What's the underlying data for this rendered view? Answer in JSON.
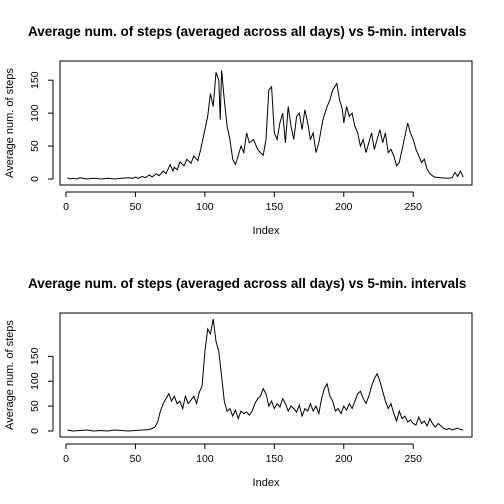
{
  "chart_data": [
    {
      "type": "line",
      "title": "Average num. of steps (averaged across all days) vs 5-min. intervals",
      "xlabel": "Index",
      "ylabel": "Average num. of steps",
      "xlim": [
        0,
        288
      ],
      "ylim": [
        0,
        170
      ],
      "xticks": [
        0,
        50,
        100,
        150,
        200,
        250
      ],
      "yticks": [
        0,
        50,
        100,
        150
      ],
      "grid": false,
      "series": [
        {
          "x": [
            1,
            3,
            5,
            8,
            10,
            12,
            15,
            20,
            25,
            30,
            35,
            40,
            45,
            48,
            50,
            52,
            55,
            57,
            60,
            62,
            65,
            67,
            70,
            72,
            75,
            77,
            78,
            80,
            82,
            85,
            87,
            90,
            92,
            95,
            97,
            100,
            102,
            104,
            106,
            108,
            110,
            111,
            112,
            114,
            116,
            118,
            120,
            122,
            124,
            126,
            128,
            130,
            132,
            135,
            138,
            140,
            142,
            144,
            146,
            148,
            150,
            152,
            154,
            156,
            158,
            160,
            162,
            164,
            166,
            168,
            170,
            172,
            174,
            176,
            178,
            180,
            182,
            185,
            188,
            190,
            192,
            195,
            197,
            199,
            200,
            202,
            204,
            206,
            208,
            210,
            212,
            214,
            216,
            218,
            220,
            222,
            224,
            226,
            228,
            230,
            232,
            234,
            236,
            238,
            240,
            242,
            244,
            246,
            248,
            250,
            252,
            254,
            256,
            258,
            260,
            262,
            265,
            270,
            275,
            278,
            280,
            282,
            284,
            286
          ],
          "y": [
            2,
            0,
            1,
            0,
            2,
            1,
            0,
            1,
            0,
            1,
            0,
            1,
            2,
            1,
            3,
            1,
            4,
            2,
            6,
            3,
            8,
            5,
            12,
            8,
            22,
            12,
            18,
            14,
            26,
            20,
            30,
            24,
            35,
            28,
            45,
            75,
            95,
            130,
            110,
            162,
            150,
            90,
            165,
            120,
            80,
            60,
            30,
            22,
            35,
            50,
            40,
            70,
            55,
            60,
            45,
            40,
            36,
            60,
            135,
            140,
            70,
            60,
            85,
            100,
            55,
            110,
            80,
            60,
            95,
            100,
            75,
            105,
            85,
            60,
            70,
            40,
            55,
            90,
            110,
            120,
            135,
            145,
            120,
            105,
            85,
            110,
            95,
            100,
            80,
            70,
            50,
            60,
            40,
            55,
            70,
            45,
            60,
            75,
            55,
            70,
            40,
            45,
            35,
            20,
            25,
            45,
            65,
            85,
            70,
            60,
            45,
            35,
            25,
            30,
            15,
            8,
            3,
            2,
            1,
            2,
            10,
            4,
            12,
            3
          ]
        }
      ]
    },
    {
      "type": "line",
      "title": "Average num. of steps (averaged across all days) vs 5-min. intervals",
      "xlabel": "Index",
      "ylabel": "Average num. of steps",
      "xlim": [
        0,
        288
      ],
      "ylim": [
        0,
        225
      ],
      "xticks": [
        0,
        50,
        100,
        150,
        200,
        250
      ],
      "yticks": [
        0,
        50,
        100,
        150
      ],
      "grid": false,
      "series": [
        {
          "x": [
            1,
            5,
            10,
            15,
            20,
            25,
            30,
            35,
            40,
            45,
            50,
            55,
            60,
            62,
            64,
            66,
            68,
            70,
            72,
            74,
            76,
            78,
            80,
            82,
            84,
            86,
            88,
            90,
            92,
            94,
            96,
            98,
            100,
            102,
            104,
            106,
            108,
            110,
            112,
            114,
            116,
            118,
            120,
            122,
            124,
            126,
            128,
            130,
            132,
            134,
            136,
            138,
            140,
            142,
            144,
            146,
            148,
            150,
            152,
            154,
            156,
            158,
            160,
            162,
            164,
            166,
            168,
            170,
            172,
            174,
            176,
            178,
            180,
            182,
            184,
            186,
            188,
            190,
            192,
            194,
            196,
            198,
            200,
            202,
            204,
            206,
            208,
            210,
            212,
            214,
            216,
            218,
            220,
            222,
            224,
            226,
            228,
            230,
            232,
            234,
            236,
            238,
            240,
            242,
            244,
            246,
            248,
            250,
            252,
            254,
            256,
            258,
            260,
            262,
            264,
            266,
            268,
            270,
            272,
            274,
            276,
            278,
            280,
            282,
            284,
            286
          ],
          "y": [
            2,
            0,
            1,
            2,
            0,
            1,
            0,
            2,
            1,
            0,
            1,
            2,
            3,
            5,
            8,
            18,
            40,
            55,
            65,
            75,
            60,
            70,
            55,
            60,
            45,
            70,
            55,
            62,
            70,
            55,
            78,
            90,
            160,
            205,
            195,
            225,
            180,
            160,
            110,
            60,
            40,
            45,
            30,
            42,
            25,
            40,
            35,
            38,
            32,
            40,
            55,
            65,
            70,
            85,
            75,
            50,
            60,
            45,
            55,
            48,
            65,
            55,
            40,
            50,
            45,
            38,
            52,
            30,
            45,
            40,
            55,
            40,
            50,
            35,
            65,
            85,
            95,
            70,
            60,
            40,
            45,
            35,
            50,
            42,
            55,
            45,
            60,
            75,
            80,
            65,
            55,
            70,
            90,
            105,
            115,
            100,
            80,
            60,
            45,
            55,
            35,
            20,
            40,
            25,
            30,
            18,
            22,
            15,
            12,
            28,
            15,
            20,
            10,
            25,
            14,
            8,
            15,
            10,
            5,
            3,
            5,
            2,
            4,
            6,
            3,
            2
          ]
        }
      ]
    }
  ]
}
